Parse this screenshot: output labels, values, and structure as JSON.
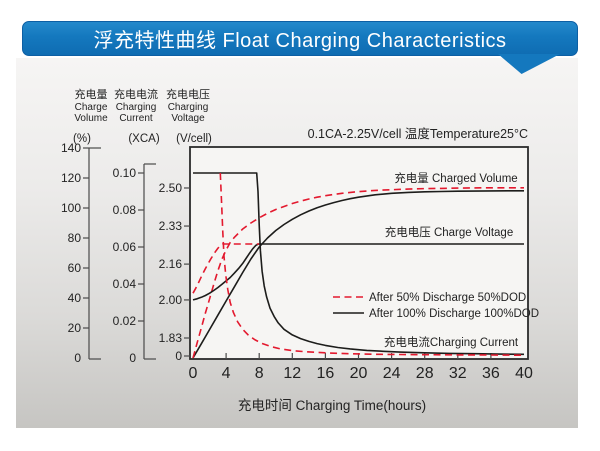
{
  "header": {
    "title": "浮充特性曲线 Float Charging Characteristics"
  },
  "colors": {
    "banner_blue": "#1478be",
    "curve_black": "#1d1d1b",
    "curve_red": "#e3192e",
    "plot_bg": "#f6f5f3"
  },
  "chart_data": {
    "type": "line",
    "condition": "0.1CA-2.25V/cell  温度Temperature25°C",
    "x_axis": {
      "title": "充电时间 Charging Time(hours)",
      "ticks": [
        "0",
        "4",
        "8",
        "12",
        "16",
        "20",
        "24",
        "28",
        "32",
        "36",
        "40"
      ],
      "range_hours": [
        0,
        40
      ]
    },
    "y_axes": [
      {
        "id": "volume",
        "label_cn": "充电量",
        "label_en_lines": [
          "Charge",
          "Volume"
        ],
        "unit": "(%)",
        "ticks": [
          "140",
          "120",
          "100",
          "80",
          "60",
          "40",
          "20",
          "0"
        ],
        "range": [
          0,
          140
        ]
      },
      {
        "id": "current",
        "label_cn": "充电电流",
        "label_en_lines": [
          "Charging",
          "Current"
        ],
        "unit": "(XCA)",
        "ticks": [
          "0.10",
          "0.08",
          "0.06",
          "0.04",
          "0.02",
          "0"
        ],
        "range": [
          0,
          0.1
        ]
      },
      {
        "id": "voltage",
        "label_cn": "充电电压",
        "label_en_lines": [
          "Charging",
          "Voltage"
        ],
        "unit": "(V/cell)",
        "ticks": [
          "2.50",
          "2.33",
          "2.16",
          "2.00",
          "1.83",
          "0"
        ],
        "range": [
          1.83,
          2.5
        ]
      }
    ],
    "curve_labels": {
      "volume": "充电量 Charged Volume",
      "voltage": "充电电压 Charge Voltage",
      "current": "充电电流Charging Current"
    },
    "legend": [
      {
        "style": "dashed",
        "color": "#e3192e",
        "label": "After 50% Discharge 50%DOD"
      },
      {
        "style": "solid",
        "color": "#1d1d1b",
        "label": "After 100%  Discharge 100%DOD"
      }
    ],
    "series": [
      {
        "name": "charged-volume-100dod",
        "axis": "volume",
        "style": "solid",
        "color": "#1d1d1b",
        "points": [
          [
            0,
            0
          ],
          [
            1,
            9.5
          ],
          [
            2,
            19
          ],
          [
            3,
            28.5
          ],
          [
            4,
            38
          ],
          [
            5,
            47.5
          ],
          [
            6,
            57
          ],
          [
            7,
            66
          ],
          [
            8,
            74
          ],
          [
            9,
            80
          ],
          [
            10,
            85
          ],
          [
            11,
            89
          ],
          [
            12,
            92.5
          ],
          [
            13,
            95.5
          ],
          [
            14,
            98
          ],
          [
            15,
            100.2
          ],
          [
            16,
            102
          ],
          [
            17,
            103.6
          ],
          [
            18,
            105
          ],
          [
            19,
            106.2
          ],
          [
            20,
            107.2
          ],
          [
            22,
            108.8
          ],
          [
            24,
            109.8
          ],
          [
            26,
            110.4
          ],
          [
            28,
            110.8
          ],
          [
            30,
            111
          ],
          [
            32,
            111.2
          ],
          [
            34,
            111.3
          ],
          [
            36,
            111.4
          ],
          [
            38,
            111.5
          ],
          [
            40,
            111.5
          ]
        ]
      },
      {
        "name": "charged-volume-50dod",
        "axis": "volume",
        "style": "dashed",
        "color": "#e3192e",
        "points": [
          [
            0,
            0
          ],
          [
            0.5,
            10
          ],
          [
            1,
            20
          ],
          [
            1.5,
            30
          ],
          [
            2,
            39.5
          ],
          [
            2.5,
            49
          ],
          [
            3,
            58
          ],
          [
            3.5,
            66
          ],
          [
            4,
            72
          ],
          [
            4.5,
            77
          ],
          [
            5,
            80.5
          ],
          [
            6,
            86
          ],
          [
            7,
            90
          ],
          [
            8,
            93.5
          ],
          [
            9,
            96.5
          ],
          [
            10,
            99
          ],
          [
            11,
            101
          ],
          [
            12,
            103
          ],
          [
            13,
            104.6
          ],
          [
            14,
            106
          ],
          [
            15,
            107.2
          ],
          [
            16,
            108.2
          ],
          [
            18,
            109.8
          ],
          [
            20,
            110.9
          ],
          [
            22,
            111.7
          ],
          [
            24,
            112.2
          ],
          [
            26,
            112.6
          ],
          [
            28,
            112.9
          ],
          [
            30,
            113.1
          ],
          [
            32,
            113.3
          ],
          [
            34,
            113.4
          ],
          [
            36,
            113.5
          ],
          [
            38,
            113.5
          ],
          [
            40,
            113.5
          ]
        ]
      },
      {
        "name": "charge-voltage-100dod",
        "axis": "voltage",
        "style": "solid",
        "color": "#1d1d1b",
        "points": [
          [
            0,
            2.0
          ],
          [
            0.5,
            2.005
          ],
          [
            1,
            2.012
          ],
          [
            1.5,
            2.02
          ],
          [
            2,
            2.03
          ],
          [
            2.5,
            2.042
          ],
          [
            3,
            2.055
          ],
          [
            3.5,
            2.07
          ],
          [
            4,
            2.085
          ],
          [
            4.5,
            2.1
          ],
          [
            5,
            2.12
          ],
          [
            5.5,
            2.14
          ],
          [
            6,
            2.163
          ],
          [
            6.4,
            2.185
          ],
          [
            6.8,
            2.207
          ],
          [
            7.2,
            2.228
          ],
          [
            7.6,
            2.244
          ],
          [
            7.9,
            2.25
          ],
          [
            40,
            2.25
          ]
        ]
      },
      {
        "name": "charge-voltage-50dod",
        "axis": "voltage",
        "style": "dashed",
        "color": "#e3192e",
        "points": [
          [
            0,
            2.03
          ],
          [
            0.3,
            2.05
          ],
          [
            0.6,
            2.072
          ],
          [
            0.9,
            2.095
          ],
          [
            1.2,
            2.118
          ],
          [
            1.5,
            2.14
          ],
          [
            1.8,
            2.16
          ],
          [
            2.1,
            2.18
          ],
          [
            2.4,
            2.198
          ],
          [
            2.7,
            2.215
          ],
          [
            3,
            2.23
          ],
          [
            3.3,
            2.243
          ],
          [
            3.6,
            2.25
          ],
          [
            8,
            2.25
          ]
        ]
      },
      {
        "name": "charging-current-100dod",
        "axis": "current",
        "style": "solid",
        "color": "#1d1d1b",
        "points": [
          [
            0,
            0.1
          ],
          [
            7.7,
            0.1
          ],
          [
            7.85,
            0.09
          ],
          [
            8,
            0.072
          ],
          [
            8.15,
            0.058
          ],
          [
            8.35,
            0.047
          ],
          [
            8.6,
            0.039
          ],
          [
            8.9,
            0.033
          ],
          [
            9.3,
            0.027
          ],
          [
            9.8,
            0.0225
          ],
          [
            10.3,
            0.019
          ],
          [
            11,
            0.0155
          ],
          [
            12,
            0.0125
          ],
          [
            13,
            0.0105
          ],
          [
            14,
            0.009
          ],
          [
            15,
            0.0078
          ],
          [
            16,
            0.0068
          ],
          [
            17.5,
            0.0057
          ],
          [
            19,
            0.0049
          ],
          [
            21,
            0.0041
          ],
          [
            23,
            0.0036
          ],
          [
            25,
            0.0032
          ],
          [
            28,
            0.0028
          ],
          [
            31,
            0.0025
          ],
          [
            34,
            0.0023
          ],
          [
            37,
            0.0021
          ],
          [
            40,
            0.002
          ]
        ]
      },
      {
        "name": "charging-current-50dod",
        "axis": "current",
        "style": "dashed",
        "color": "#e3192e",
        "points": [
          [
            3.3,
            0.1
          ],
          [
            3.45,
            0.085
          ],
          [
            3.6,
            0.068
          ],
          [
            3.75,
            0.055
          ],
          [
            3.95,
            0.045
          ],
          [
            4.2,
            0.037
          ],
          [
            4.5,
            0.03
          ],
          [
            4.9,
            0.0245
          ],
          [
            5.4,
            0.0195
          ],
          [
            6,
            0.0155
          ],
          [
            6.7,
            0.0123
          ],
          [
            7.5,
            0.0098
          ],
          [
            8.4,
            0.0078
          ],
          [
            9.4,
            0.0062
          ],
          [
            10.5,
            0.005
          ],
          [
            12,
            0.004
          ],
          [
            13.5,
            0.0034
          ],
          [
            15,
            0.003
          ],
          [
            17,
            0.0026
          ],
          [
            19,
            0.0023
          ],
          [
            22,
            0.002
          ],
          [
            25,
            0.0019
          ],
          [
            28,
            0.0018
          ],
          [
            32,
            0.0017
          ],
          [
            36,
            0.0016
          ],
          [
            40,
            0.0015
          ]
        ]
      }
    ]
  }
}
